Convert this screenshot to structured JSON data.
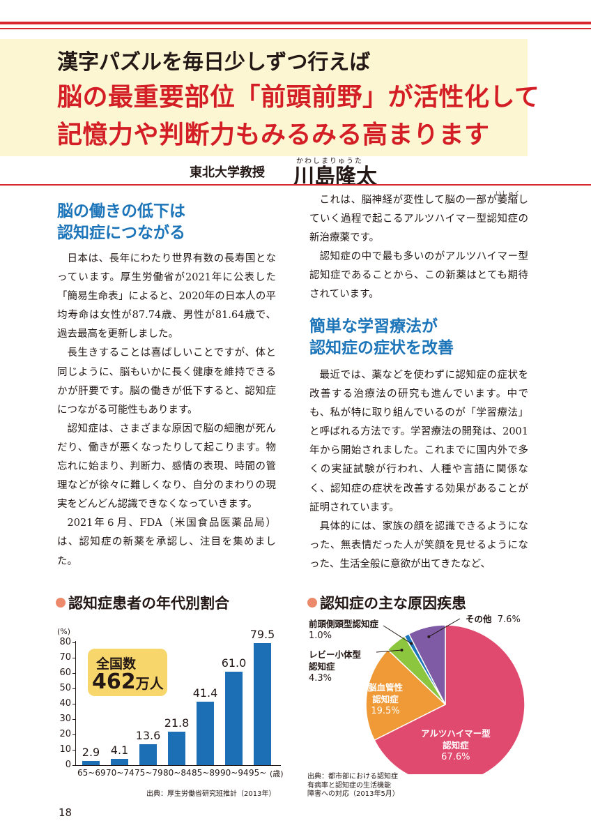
{
  "header": {
    "line1": "漢字パズルを毎日少しずつ行えば",
    "line2": "脳の最重要部位「前頭前野」が活性化して",
    "line3": "記憶力や判断力もみるみる高まります",
    "affiliation": "東北大学教授",
    "author": "川島隆太",
    "author_ruby": "かわしまりゅうた"
  },
  "left_column": {
    "heading_line1": "脳の働きの低下は",
    "heading_line2": "認知症につながる",
    "p1": "日本は、長年にわたり世界有数の長寿国となっています。厚生労働省が2021年に公表した「簡易生命表」によると、2020年の日本人の平均寿命は女性が87.74歳、男性が81.64歳で、過去最高を更新しました。",
    "p2": "長生きすることは喜ばしいことですが、体と同じように、脳もいかに長く健康を維持できるかが肝要です。脳の働きが低下すると、認知症につながる可能性もあります。",
    "p3": "認知症は、さまざまな原因で脳の細胞が死んだり、働きが悪くなったりして起こります。物忘れに始まり、判断力、感情の表現、時間の管理などが徐々に難しくなり、自分のまわりの現実をどんどん認識できなくなっていきます。",
    "p4": "2021年６月、FDA（米国食品医薬品局）は、認知症の新薬を承認し、注目を集めました。"
  },
  "right_column": {
    "p1": "これは、脳神経が変性して脳の一部が萎縮していく過程で起こるアルツハイマー型認知症の新治療薬です。",
    "ruby_ishuku": "いしゅく",
    "p2": "認知症の中で最も多いのがアルツハイマー型認知症であることから、この新薬はとても期待されています。",
    "heading_line1": "簡単な学習療法が",
    "heading_line2": "認知症の症状を改善",
    "p3": "最近では、薬などを使わずに認知症の症状を改善する治療法の研究も進んでいます。中でも、私が特に取り組んでいるのが「学習療法」と呼ばれる方法です。学習療法の開発は、2001年から開始されました。これまでに国内外で多くの実証試験が行われ、人種や言語に関係なく、認知症の症状を改善する効果があることが証明されています。",
    "p4": "具体的には、家族の顔を認識できるようになった、無表情だった人が笑顔を見せるようになった、生活全般に意欲が出てきたなど、"
  },
  "bar_section": {
    "title": "認知症患者の年代別割合",
    "callout_line1": "全国数",
    "callout_number": "462",
    "callout_unit": "万人",
    "source": "出典：厚生労働省研究班推計（2013年）"
  },
  "pie_section": {
    "title": "認知症の主な原因疾患",
    "source_line1": "出典：都市部における認知症",
    "source_line2": "有病率と認知症の生活機能",
    "source_line3": "障害への対応（2013年5月）"
  },
  "page_number": "18",
  "colors": {
    "red": "#d41e26",
    "blue": "#1c74b9",
    "bar": "#1c6fb5",
    "banner": "#fdf6d3",
    "callout": "#f7d76b",
    "dot": "#ec8a6b"
  },
  "chart_data": [
    {
      "type": "bar",
      "categories": [
        "65~69",
        "70~74",
        "75~79",
        "80~84",
        "85~89",
        "90~94",
        "95~"
      ],
      "values": [
        2.9,
        4.1,
        13.6,
        21.8,
        41.4,
        61.0,
        79.5
      ],
      "value_labels": [
        "2.9",
        "4.1",
        "13.6",
        "21.8",
        "41.4",
        "61.0",
        "79.5"
      ],
      "y_unit": "(%)",
      "x_unit": "(歳)",
      "ylim": [
        0,
        80
      ],
      "yticks": [
        0,
        10,
        20,
        30,
        40,
        50,
        60,
        70,
        80
      ],
      "grid": false
    },
    {
      "type": "pie",
      "slices": [
        {
          "label": "アルツハイマー型認知症",
          "value": 67.6,
          "value_label": "67.6%",
          "color": "#e04a6e"
        },
        {
          "label": "脳血管性認知症",
          "value": 19.5,
          "value_label": "19.5%",
          "color": "#ef9a36"
        },
        {
          "label": "レビー小体型認知症",
          "value": 4.3,
          "value_label": "4.3%",
          "color": "#8cc63f"
        },
        {
          "label": "前頭側頭型認知症",
          "value": 1.0,
          "value_label": "1.0%",
          "color": "#1c74b9"
        },
        {
          "label": "その他",
          "value": 7.6,
          "value_label": "7.6%",
          "color": "#7f5ba6"
        }
      ]
    }
  ]
}
